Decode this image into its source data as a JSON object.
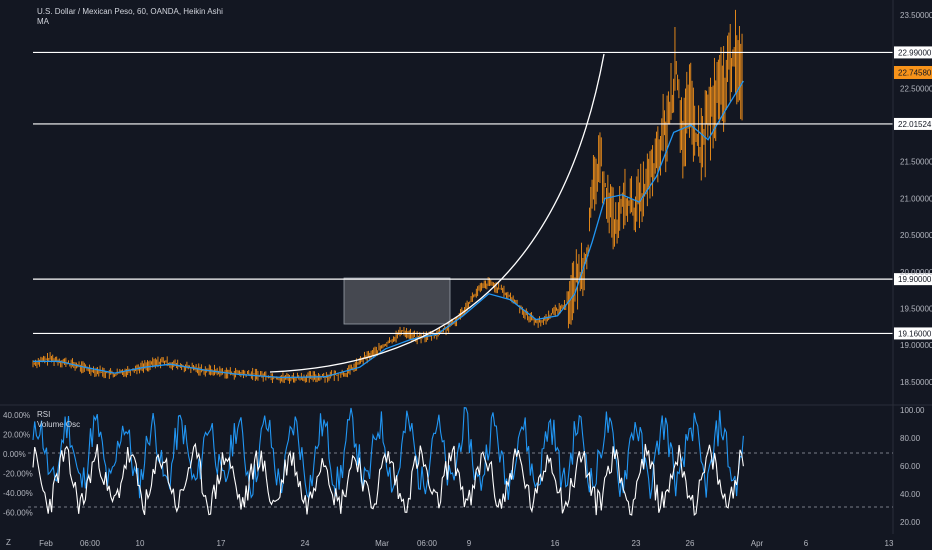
{
  "header": {
    "title": "U.S. Dollar / Mexican Peso, 60, OANDA, Heikin Ashi",
    "indicator": "MA"
  },
  "sub_panel": {
    "rsi_label": "RSI",
    "volume_osc_label": "Volume Osc"
  },
  "corner_label": "Z",
  "colors": {
    "background": "#131722",
    "candles": "#f7931a",
    "ma_line": "#2196f3",
    "levels": "#ffffff",
    "rsi_line": "#ffffff",
    "volume_osc_line": "#2196f3",
    "price_tag": "#f7931a"
  },
  "chart_data": [
    {
      "type": "line",
      "title": "U.S. Dollar / Mexican Peso, 60, OANDA, Heikin Ashi",
      "x_tick_labels": [
        "Feb",
        "06:00",
        "10",
        "17",
        "24",
        "Mar",
        "06:00",
        "9",
        "16",
        "23",
        "26",
        "Apr",
        "6",
        "13"
      ],
      "y_tick_labels": [
        "23.50000",
        "22.50000",
        "21.50000",
        "21.00000",
        "20.50000",
        "20.00000",
        "19.50000",
        "19.00000",
        "18.50000"
      ],
      "ylim": [
        18.28,
        23.65
      ],
      "horizontal_levels": [
        "22.99000",
        "22.01524",
        "19.90000",
        "19.16000"
      ],
      "current_price": "22.74580",
      "price_path": [
        [
          0.0,
          18.75
        ],
        [
          0.02,
          18.82
        ],
        [
          0.045,
          18.74
        ],
        [
          0.07,
          18.66
        ],
        [
          0.095,
          18.6
        ],
        [
          0.125,
          18.7
        ],
        [
          0.15,
          18.78
        ],
        [
          0.175,
          18.7
        ],
        [
          0.2,
          18.66
        ],
        [
          0.23,
          18.62
        ],
        [
          0.26,
          18.6
        ],
        [
          0.29,
          18.55
        ],
        [
          0.32,
          18.56
        ],
        [
          0.345,
          18.58
        ],
        [
          0.365,
          18.62
        ],
        [
          0.385,
          18.82
        ],
        [
          0.4,
          18.92
        ],
        [
          0.415,
          19.05
        ],
        [
          0.43,
          19.2
        ],
        [
          0.445,
          19.1
        ],
        [
          0.46,
          19.12
        ],
        [
          0.475,
          19.18
        ],
        [
          0.49,
          19.3
        ],
        [
          0.505,
          19.55
        ],
        [
          0.518,
          19.75
        ],
        [
          0.53,
          19.85
        ],
        [
          0.545,
          19.75
        ],
        [
          0.56,
          19.6
        ],
        [
          0.575,
          19.4
        ],
        [
          0.59,
          19.3
        ],
        [
          0.605,
          19.45
        ],
        [
          0.62,
          19.55
        ],
        [
          0.635,
          19.95
        ],
        [
          0.645,
          20.3
        ],
        [
          0.652,
          21.2
        ],
        [
          0.66,
          21.5
        ],
        [
          0.668,
          21.0
        ],
        [
          0.678,
          20.6
        ],
        [
          0.688,
          21.0
        ],
        [
          0.698,
          20.85
        ],
        [
          0.71,
          21.1
        ],
        [
          0.725,
          21.5
        ],
        [
          0.74,
          22.1
        ],
        [
          0.748,
          22.8
        ],
        [
          0.755,
          21.9
        ],
        [
          0.765,
          22.2
        ],
        [
          0.775,
          21.6
        ],
        [
          0.785,
          22.1
        ],
        [
          0.795,
          22.3
        ],
        [
          0.805,
          22.6
        ],
        [
          0.815,
          23.0
        ],
        [
          0.82,
          22.7
        ],
        [
          0.826,
          22.75
        ]
      ],
      "ma_path": [
        [
          0.0,
          18.78
        ],
        [
          0.03,
          18.78
        ],
        [
          0.06,
          18.7
        ],
        [
          0.095,
          18.62
        ],
        [
          0.13,
          18.7
        ],
        [
          0.16,
          18.74
        ],
        [
          0.2,
          18.66
        ],
        [
          0.24,
          18.6
        ],
        [
          0.29,
          18.56
        ],
        [
          0.34,
          18.57
        ],
        [
          0.38,
          18.7
        ],
        [
          0.41,
          18.95
        ],
        [
          0.44,
          19.08
        ],
        [
          0.47,
          19.15
        ],
        [
          0.5,
          19.4
        ],
        [
          0.53,
          19.7
        ],
        [
          0.555,
          19.62
        ],
        [
          0.585,
          19.35
        ],
        [
          0.61,
          19.4
        ],
        [
          0.63,
          19.7
        ],
        [
          0.65,
          20.4
        ],
        [
          0.665,
          21.0
        ],
        [
          0.685,
          21.05
        ],
        [
          0.705,
          20.95
        ],
        [
          0.725,
          21.3
        ],
        [
          0.745,
          21.9
        ],
        [
          0.765,
          22.0
        ],
        [
          0.785,
          21.8
        ],
        [
          0.805,
          22.2
        ],
        [
          0.826,
          22.6
        ]
      ]
    },
    {
      "type": "line",
      "y_left_tick_labels": [
        "40.00%",
        "20.00%",
        "0.00%",
        "-20.00%",
        "-40.00%",
        "-60.00%"
      ],
      "y_right_tick_labels": [
        "100.00",
        "80.00",
        "60.00",
        "40.00",
        "20.00"
      ],
      "left_ylim": [
        -0.8,
        0.48
      ],
      "right_ylim": [
        13,
        102
      ],
      "reference_lines_right": [
        70,
        30
      ],
      "series": [
        {
          "name": "Volume Osc",
          "axis": "left",
          "cycles": 50,
          "amplitude": 0.4,
          "baseline": 0.0
        },
        {
          "name": "RSI",
          "axis": "right",
          "cycles": 44,
          "amplitude": 22,
          "baseline": 50
        }
      ]
    }
  ]
}
